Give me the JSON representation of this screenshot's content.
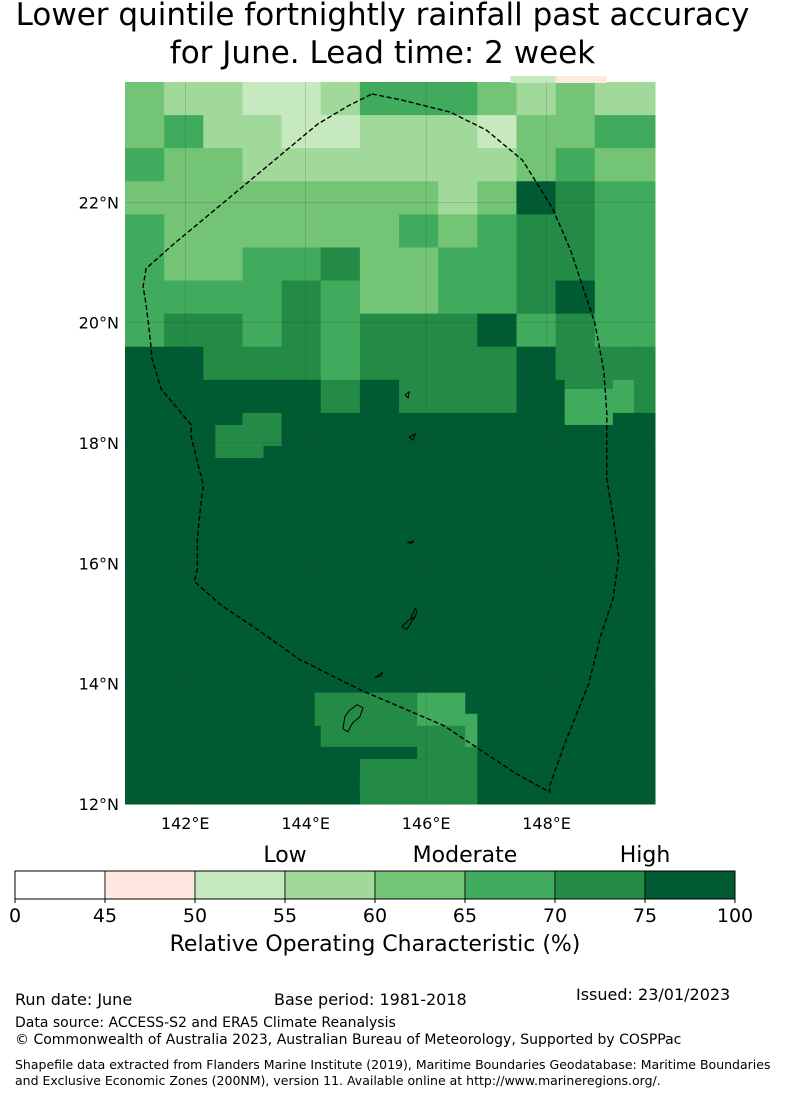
{
  "title": {
    "line1": "Lower quintile fortnightly rainfall past accuracy",
    "line2": "for June. Lead time: 2 week"
  },
  "map": {
    "lon_range": [
      141,
      149.8
    ],
    "lat_range": [
      12,
      24
    ],
    "lon_ticks": [
      {
        "value": 142,
        "label": "142°E"
      },
      {
        "value": 144,
        "label": "144°E"
      },
      {
        "value": 146,
        "label": "146°E"
      },
      {
        "value": 148,
        "label": "148°E"
      }
    ],
    "lat_ticks": [
      {
        "value": 12,
        "label": "12°N"
      },
      {
        "value": 14,
        "label": "14°N"
      },
      {
        "value": 16,
        "label": "16°N"
      },
      {
        "value": 18,
        "label": "18°N"
      },
      {
        "value": 20,
        "label": "20°N"
      },
      {
        "value": 22,
        "label": "22°N"
      }
    ],
    "grid_on": true,
    "eez_boundary": [
      [
        145.1,
        23.8
      ],
      [
        145.6,
        23.7
      ],
      [
        146.4,
        23.5
      ],
      [
        147.0,
        23.2
      ],
      [
        147.6,
        22.7
      ],
      [
        148.1,
        21.9
      ],
      [
        148.4,
        21.2
      ],
      [
        148.6,
        20.6
      ],
      [
        148.8,
        20.0
      ],
      [
        148.95,
        19.2
      ],
      [
        149.0,
        18.5
      ],
      [
        149.0,
        17.4
      ],
      [
        149.1,
        16.8
      ],
      [
        149.2,
        16.1
      ],
      [
        149.1,
        15.4
      ],
      [
        148.9,
        14.8
      ],
      [
        148.7,
        14.0
      ],
      [
        148.5,
        13.5
      ],
      [
        148.3,
        13.0
      ],
      [
        148.05,
        12.3
      ],
      [
        148.05,
        12.2
      ],
      [
        147.5,
        12.5
      ],
      [
        146.9,
        12.9
      ],
      [
        146.3,
        13.3
      ],
      [
        145.6,
        13.6
      ],
      [
        144.9,
        13.9
      ],
      [
        144.3,
        14.2
      ],
      [
        143.9,
        14.4
      ],
      [
        143.2,
        14.9
      ],
      [
        142.6,
        15.3
      ],
      [
        142.15,
        15.7
      ],
      [
        142.2,
        15.9
      ],
      [
        142.2,
        16.4
      ],
      [
        142.25,
        16.9
      ],
      [
        142.3,
        17.3
      ],
      [
        142.2,
        17.7
      ],
      [
        142.1,
        18.1
      ],
      [
        142.1,
        18.3
      ],
      [
        141.85,
        18.6
      ],
      [
        141.6,
        18.9
      ],
      [
        141.45,
        19.4
      ],
      [
        141.4,
        19.9
      ],
      [
        141.35,
        20.3
      ],
      [
        141.3,
        20.6
      ],
      [
        141.35,
        20.9
      ],
      [
        141.8,
        21.3
      ],
      [
        142.4,
        21.8
      ],
      [
        143.0,
        22.3
      ],
      [
        143.6,
        22.8
      ],
      [
        144.2,
        23.3
      ],
      [
        144.7,
        23.6
      ],
      [
        145.1,
        23.8
      ]
    ],
    "islands": [
      {
        "name": "",
        "points": [
          [
            144.62,
            13.25
          ],
          [
            144.65,
            13.45
          ],
          [
            144.72,
            13.55
          ],
          [
            144.85,
            13.65
          ],
          [
            144.95,
            13.6
          ],
          [
            144.9,
            13.45
          ],
          [
            144.78,
            13.35
          ],
          [
            144.7,
            13.2
          ],
          [
            144.62,
            13.25
          ]
        ]
      },
      {
        "name": "",
        "points": [
          [
            145.15,
            14.1
          ],
          [
            145.27,
            14.18
          ],
          [
            145.25,
            14.13
          ],
          [
            145.15,
            14.1
          ]
        ]
      },
      {
        "name": "",
        "points": [
          [
            145.6,
            14.95
          ],
          [
            145.7,
            15.05
          ],
          [
            145.8,
            15.1
          ],
          [
            145.68,
            14.9
          ],
          [
            145.6,
            14.95
          ]
        ]
      },
      {
        "name": "",
        "points": [
          [
            145.75,
            15.1
          ],
          [
            145.82,
            15.25
          ],
          [
            145.85,
            15.2
          ],
          [
            145.8,
            15.08
          ],
          [
            145.75,
            15.1
          ]
        ]
      },
      {
        "name": "",
        "points": [
          [
            145.7,
            16.35
          ],
          [
            145.8,
            16.37
          ],
          [
            145.75,
            16.33
          ],
          [
            145.7,
            16.35
          ]
        ]
      },
      {
        "name": "",
        "points": [
          [
            145.65,
            18.8
          ],
          [
            145.72,
            18.85
          ],
          [
            145.7,
            18.75
          ],
          [
            145.65,
            18.8
          ]
        ]
      },
      {
        "name": "",
        "points": [
          [
            145.72,
            18.1
          ],
          [
            145.82,
            18.15
          ],
          [
            145.78,
            18.05
          ],
          [
            145.72,
            18.1
          ]
        ]
      }
    ],
    "cells": {
      "lon_edges": [
        141.0,
        141.65,
        142.3,
        142.95,
        143.6,
        144.25,
        144.9,
        145.55,
        146.2,
        146.85,
        147.5,
        148.15,
        148.8,
        149.45,
        149.8
      ],
      "rows": [
        {
          "lat_top": 24.0,
          "lat_bottom": 23.45,
          "classes": [
            3,
            2,
            2,
            1,
            1,
            2,
            4,
            4,
            4,
            3,
            2,
            3,
            2,
            2
          ]
        },
        {
          "lat_top": 23.45,
          "lat_bottom": 22.9,
          "classes": [
            3,
            4,
            2,
            2,
            1,
            1,
            2,
            2,
            2,
            1,
            3,
            3,
            4,
            4
          ]
        },
        {
          "lat_top": 22.9,
          "lat_bottom": 22.35,
          "classes": [
            4,
            3,
            3,
            2,
            2,
            2,
            2,
            2,
            2,
            2,
            3,
            4,
            3,
            3
          ]
        },
        {
          "lat_top": 22.35,
          "lat_bottom": 21.8,
          "classes": [
            3,
            3,
            3,
            3,
            3,
            3,
            3,
            3,
            2,
            3,
            6,
            5,
            4,
            4
          ]
        },
        {
          "lat_top": 21.8,
          "lat_bottom": 21.25,
          "classes": [
            4,
            3,
            3,
            3,
            3,
            3,
            3,
            4,
            3,
            4,
            5,
            5,
            4,
            4
          ]
        },
        {
          "lat_top": 21.25,
          "lat_bottom": 20.7,
          "classes": [
            4,
            3,
            3,
            4,
            4,
            5,
            3,
            3,
            4,
            4,
            5,
            5,
            4,
            4
          ]
        },
        {
          "lat_top": 20.7,
          "lat_bottom": 20.15,
          "classes": [
            4,
            4,
            4,
            4,
            5,
            4,
            3,
            3,
            4,
            4,
            5,
            6,
            4,
            4
          ]
        },
        {
          "lat_top": 20.15,
          "lat_bottom": 19.6,
          "classes": [
            4,
            5,
            5,
            4,
            5,
            4,
            5,
            5,
            5,
            6,
            4,
            5,
            4,
            4
          ]
        },
        {
          "lat_top": 19.6,
          "lat_bottom": 19.05,
          "classes": [
            6,
            6,
            5,
            5,
            5,
            4,
            5,
            5,
            5,
            5,
            6,
            5,
            5,
            5
          ]
        },
        {
          "lat_top": 19.05,
          "lat_bottom": 18.5,
          "classes": [
            6,
            6,
            6,
            6,
            6,
            5,
            6,
            5,
            5,
            5,
            6,
            6,
            4,
            5
          ]
        },
        {
          "lat_top": 18.5,
          "lat_bottom": 17.95,
          "classes": [
            6,
            6,
            6,
            5,
            6,
            6,
            6,
            6,
            6,
            6,
            6,
            6,
            6,
            6
          ]
        },
        {
          "lat_top": 17.95,
          "lat_bottom": 13.5,
          "classes": [
            6,
            6,
            6,
            6,
            6,
            6,
            6,
            6,
            6,
            6,
            6,
            6,
            6,
            6
          ]
        },
        {
          "lat_top": 13.5,
          "lat_bottom": 12.95,
          "classes": [
            6,
            6,
            6,
            6,
            6,
            5,
            5,
            5,
            4,
            6,
            6,
            6,
            6,
            6
          ]
        },
        {
          "lat_top": 12.95,
          "lat_bottom": 12.4,
          "classes": [
            6,
            6,
            6,
            6,
            6,
            6,
            6,
            6,
            5,
            6,
            6,
            6,
            6,
            6
          ]
        },
        {
          "lat_top": 12.4,
          "lat_bottom": 12.0,
          "classes": [
            6,
            6,
            6,
            6,
            6,
            6,
            5,
            5,
            5,
            6,
            6,
            6,
            6,
            6
          ]
        }
      ],
      "note_override": [
        {
          "lat_top": 18.3,
          "lat_bottom": 17.75,
          "lon_left": 142.5,
          "lon_right": 143.3,
          "class": 5
        },
        {
          "lat_top": 13.85,
          "lat_bottom": 13.3,
          "lon_left": 144.15,
          "lon_right": 145.85,
          "class": 5
        },
        {
          "lat_top": 13.85,
          "lat_bottom": 13.3,
          "lon_left": 145.85,
          "lon_right": 146.65,
          "class": 4
        },
        {
          "lat_top": 13.3,
          "lat_bottom": 12.75,
          "lon_left": 145.85,
          "lon_right": 146.65,
          "class": 5
        },
        {
          "lat_top": 12.75,
          "lat_bottom": 12.2,
          "lon_left": 144.9,
          "lon_right": 146.65,
          "class": 5
        },
        {
          "lat_top": 18.9,
          "lat_bottom": 18.3,
          "lon_left": 148.3,
          "lon_right": 149.1,
          "class": 4
        },
        {
          "lat_top": 19.45,
          "lat_bottom": 18.9,
          "lon_left": 148.3,
          "lon_right": 149.1,
          "class": 5
        }
      ]
    }
  },
  "colorbar": {
    "bounds": [
      0,
      45,
      50,
      55,
      60,
      65,
      70,
      75,
      100
    ],
    "tick_labels": [
      "0",
      "45",
      "50",
      "55",
      "60",
      "65",
      "70",
      "75",
      "100"
    ],
    "colors": [
      "#ffffff",
      "#fee8e0",
      "#c7e9c0",
      "#a1d99b",
      "#74c476",
      "#41ab5d",
      "#238b45",
      "#005a32"
    ],
    "categories": [
      {
        "label": "Low",
        "at": 55
      },
      {
        "label": "Moderate",
        "at": 65
      },
      {
        "label": "High",
        "at": 75
      }
    ],
    "xlabel": "Relative Operating Characteristic (%)"
  },
  "class_colors": [
    "#ffffff",
    "#c7e9c0",
    "#a1d99b",
    "#74c476",
    "#41ab5d",
    "#238b45",
    "#005a32"
  ],
  "footer": {
    "run_date": "Run date: June",
    "base_period": "Base period: 1981-2018",
    "issued": "Issued: 23/01/2023",
    "data_source": "Data source: ACCESS-S2 and ERA5 Climate Reanalysis",
    "copyright": "© Commonwealth of Australia 2023, Australian Bureau of Meteorology, Supported by COSPPac",
    "shapefile_line1": "Shapefile data extracted from Flanders Marine Institute (2019), Maritime Boundaries Geodatabase: Maritime Boundaries",
    "shapefile_line2": "and Exclusive Economic Zones (200NM), version 11. Available online at http://www.marineregions.org/."
  }
}
